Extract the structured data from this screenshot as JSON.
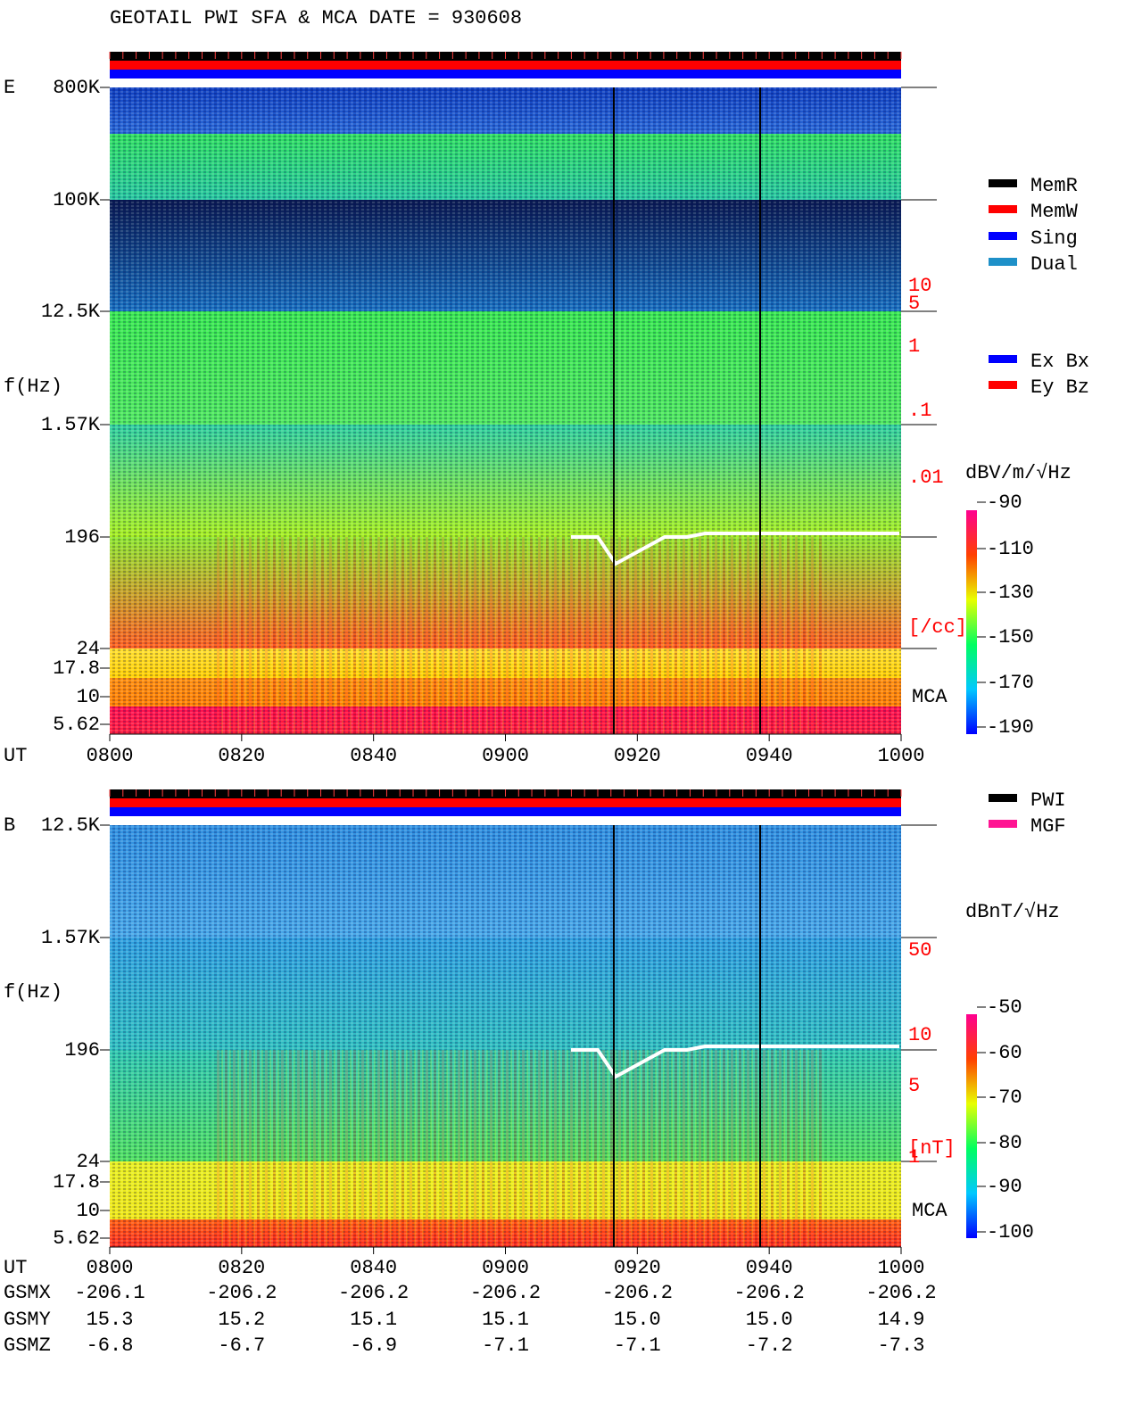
{
  "title": "GEOTAIL  PWI SFA & MCA   DATE = 930608",
  "panels": [
    {
      "label": "E",
      "ylabel": "f(Hz)",
      "freq_ticks": [
        "800K",
        "100K",
        "12.5K",
        "1.57K",
        "196",
        "24",
        "17.8",
        "10",
        "5.62"
      ],
      "right_scale": [
        "10",
        "5",
        "1",
        ".1",
        ".01",
        "[/cc]"
      ],
      "mca": "MCA",
      "x_label": "UT",
      "time_ticks": [
        "0800",
        "0820",
        "0840",
        "0900",
        "0920",
        "0940",
        "1000"
      ],
      "unit": "dBV/m/√Hz",
      "colorbar_ticks": [
        "-90",
        "-110",
        "-130",
        "-150",
        "-170",
        "-190"
      ]
    },
    {
      "label": "B",
      "ylabel": "f(Hz)",
      "freq_ticks": [
        "12.5K",
        "1.57K",
        "196",
        "24",
        "17.8",
        "10",
        "5.62"
      ],
      "right_scale": [
        "50",
        "10",
        "5",
        "1",
        "[nT]"
      ],
      "mca": "MCA",
      "x_label": "UT",
      "time_ticks": [
        "0800",
        "0820",
        "0840",
        "0900",
        "0920",
        "0940",
        "1000"
      ],
      "unit": "dBnT/√Hz",
      "colorbar_ticks": [
        "-50",
        "-60",
        "-70",
        "-80",
        "-90",
        "-100"
      ]
    }
  ],
  "legend_memory": [
    {
      "label": "MemR",
      "color": "#000000"
    },
    {
      "label": "MemW",
      "color": "#ff0000"
    },
    {
      "label": "Sing",
      "color": "#0000ff"
    },
    {
      "label": "Dual",
      "color": "#1e90c8"
    }
  ],
  "legend_component": [
    {
      "label": "Ex Bx",
      "color": "#0000ff"
    },
    {
      "label": "Ey Bz",
      "color": "#ff0000"
    }
  ],
  "legend_source": [
    {
      "label": "PWI",
      "color": "#000000"
    },
    {
      "label": "MGF",
      "color": "#ff1493"
    }
  ],
  "orbit": [
    {
      "label": "GSMX",
      "values": [
        "-206.1",
        "-206.2",
        "-206.2",
        "-206.2",
        "-206.2",
        "-206.2",
        "-206.2"
      ]
    },
    {
      "label": "GSMY",
      "values": [
        "15.3",
        "15.2",
        "15.1",
        "15.1",
        "15.0",
        "15.0",
        "14.9"
      ]
    },
    {
      "label": "GSMZ",
      "values": [
        "-6.8",
        "-6.7",
        "-6.9",
        "-7.1",
        "-7.1",
        "-7.2",
        "-7.3"
      ]
    }
  ]
}
